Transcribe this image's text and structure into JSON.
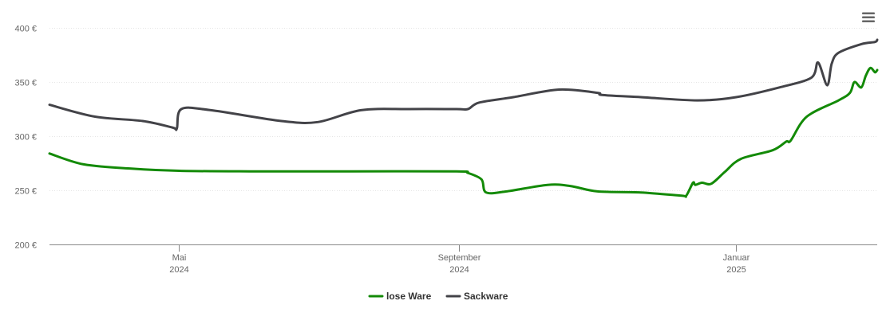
{
  "chart_data": {
    "type": "line",
    "title": "",
    "xlabel": "",
    "ylabel": "",
    "ylim": [
      200,
      400
    ],
    "yticks": [
      {
        "value": 200,
        "label": "200 €"
      },
      {
        "value": 250,
        "label": "250 €"
      },
      {
        "value": 300,
        "label": "300 €"
      },
      {
        "value": 350,
        "label": "350 €"
      },
      {
        "value": 400,
        "label": "400 €"
      }
    ],
    "xrange": [
      "2024-03-05",
      "2025-03-04"
    ],
    "xticks": [
      {
        "date": "2024-05-01",
        "line1": "Mai",
        "line2": "2024"
      },
      {
        "date": "2024-09-01",
        "line1": "September",
        "line2": "2024"
      },
      {
        "date": "2025-01-01",
        "line1": "Januar",
        "line2": "2025"
      }
    ],
    "grid": true,
    "legend": "bottom-center",
    "series": [
      {
        "name": "lose Ware",
        "color": "#138a07",
        "points": [
          [
            "2024-03-05",
            284
          ],
          [
            "2024-03-20",
            274
          ],
          [
            "2024-04-10",
            270
          ],
          [
            "2024-05-01",
            268
          ],
          [
            "2024-06-01",
            267.5
          ],
          [
            "2024-07-15",
            267.5
          ],
          [
            "2024-08-31",
            267.5
          ],
          [
            "2024-09-05",
            266
          ],
          [
            "2024-09-11",
            260
          ],
          [
            "2024-09-13",
            248
          ],
          [
            "2024-09-22",
            249
          ],
          [
            "2024-10-10",
            255
          ],
          [
            "2024-10-20",
            254
          ],
          [
            "2024-11-01",
            249
          ],
          [
            "2024-11-20",
            248
          ],
          [
            "2024-12-08",
            245
          ],
          [
            "2024-12-10",
            245
          ],
          [
            "2024-12-13",
            257
          ],
          [
            "2024-12-14",
            255
          ],
          [
            "2024-12-17",
            257
          ],
          [
            "2024-12-21",
            256
          ],
          [
            "2024-12-27",
            267
          ],
          [
            "2025-01-03",
            279
          ],
          [
            "2025-01-17",
            287
          ],
          [
            "2025-01-23",
            295
          ],
          [
            "2025-01-25",
            296
          ],
          [
            "2025-02-01",
            318
          ],
          [
            "2025-02-15",
            333
          ],
          [
            "2025-02-20",
            340
          ],
          [
            "2025-02-22",
            350
          ],
          [
            "2025-02-25",
            345
          ],
          [
            "2025-02-27",
            356
          ],
          [
            "2025-03-01",
            363
          ],
          [
            "2025-03-03",
            359
          ],
          [
            "2025-03-04",
            361
          ]
        ]
      },
      {
        "name": "Sackware",
        "color": "#434348",
        "points": [
          [
            "2024-03-05",
            329
          ],
          [
            "2024-03-25",
            318
          ],
          [
            "2024-04-15",
            314
          ],
          [
            "2024-04-28",
            308
          ],
          [
            "2024-04-30",
            307
          ],
          [
            "2024-05-02",
            325
          ],
          [
            "2024-05-15",
            324
          ],
          [
            "2024-06-15",
            314
          ],
          [
            "2024-07-01",
            313
          ],
          [
            "2024-07-20",
            324
          ],
          [
            "2024-08-10",
            325
          ],
          [
            "2024-08-31",
            325
          ],
          [
            "2024-09-05",
            325
          ],
          [
            "2024-09-10",
            331
          ],
          [
            "2024-09-25",
            336
          ],
          [
            "2024-10-15",
            343
          ],
          [
            "2024-11-01",
            340
          ],
          [
            "2024-11-03",
            338
          ],
          [
            "2024-11-20",
            336
          ],
          [
            "2024-12-15",
            333
          ],
          [
            "2025-01-01",
            336
          ],
          [
            "2025-01-20",
            345
          ],
          [
            "2025-02-03",
            354
          ],
          [
            "2025-02-06",
            368
          ],
          [
            "2025-02-10",
            347
          ],
          [
            "2025-02-12",
            367
          ],
          [
            "2025-02-15",
            377
          ],
          [
            "2025-02-25",
            385
          ],
          [
            "2025-03-03",
            387
          ],
          [
            "2025-03-04",
            389
          ]
        ]
      }
    ]
  }
}
